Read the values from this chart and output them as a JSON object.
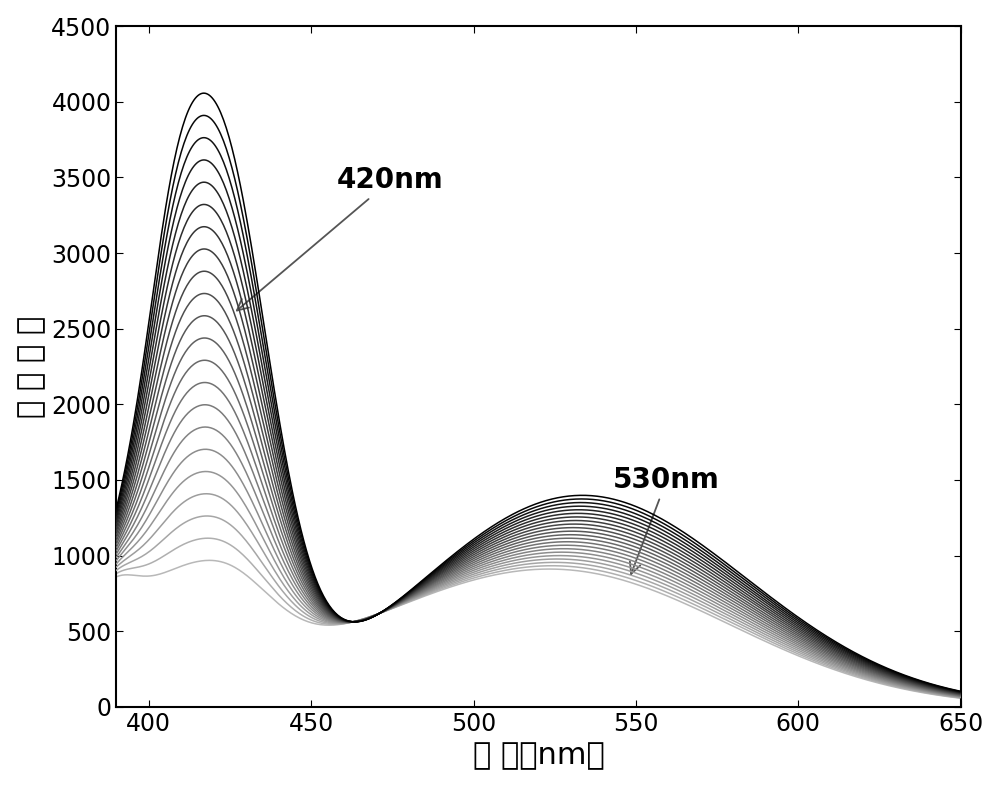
{
  "x_min": 390,
  "x_max": 650,
  "y_min": 0,
  "y_max": 4500,
  "x_ticks": [
    400,
    450,
    500,
    550,
    600,
    650
  ],
  "y_ticks": [
    0,
    500,
    1000,
    1500,
    2000,
    2500,
    3000,
    3500,
    4000,
    4500
  ],
  "xlabel": "波 长（nm）",
  "ylabel": "荺 光 强 度",
  "annotation1_text": "420nm",
  "annotation2_text": "530nm",
  "n_curves": 22,
  "background_color": "#ffffff",
  "xlabel_fontsize": 22,
  "ylabel_fontsize": 22,
  "tick_fontsize": 17,
  "annotation_fontsize": 20
}
